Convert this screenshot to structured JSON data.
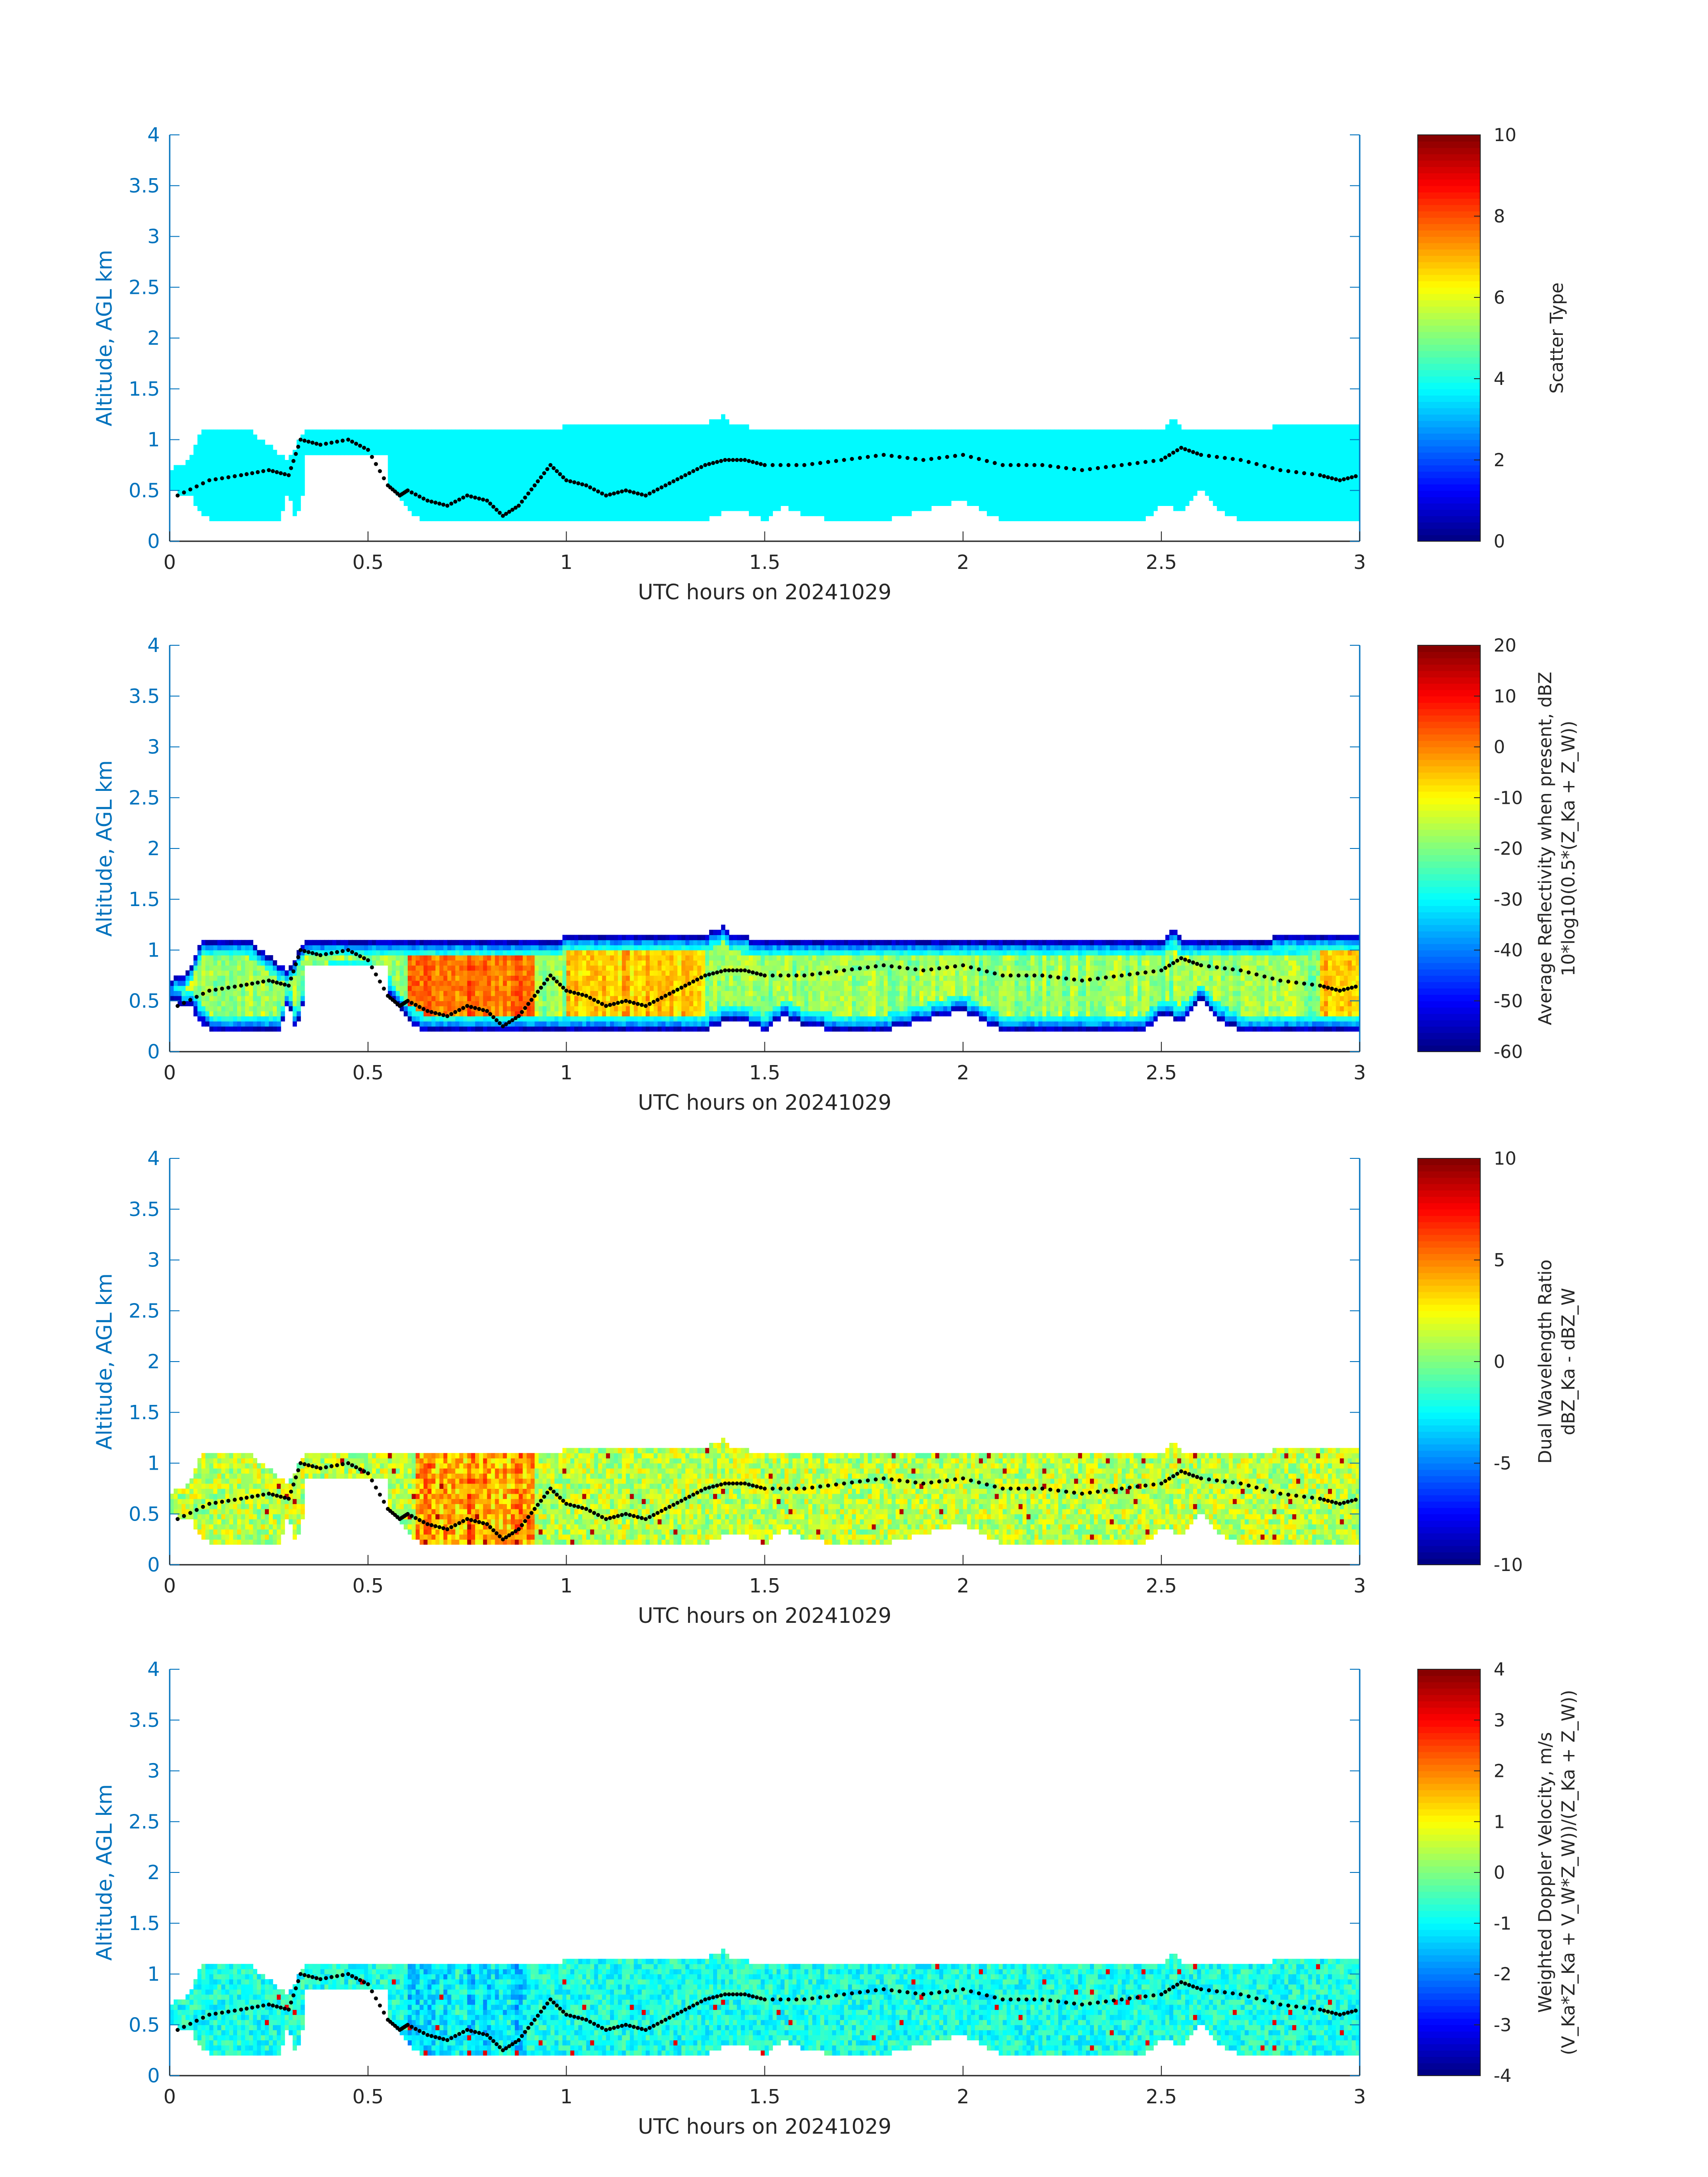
{
  "chart_data": [
    {
      "type": "heatmap",
      "xlabel": "UTC hours on 20241029",
      "ylabel": "Altitude, AGL km",
      "xlim": [
        0,
        3
      ],
      "ylim": [
        0,
        4
      ],
      "xticks": [
        "0",
        "0.5",
        "1",
        "1.5",
        "2",
        "2.5",
        "3"
      ],
      "yticks": [
        "0",
        "0.5",
        "1",
        "1.5",
        "2",
        "2.5",
        "3",
        "3.5",
        "4"
      ],
      "colorbar": {
        "label_lines": [
          "Scatter Type"
        ],
        "clim": [
          0,
          10
        ],
        "ticks": [
          "0",
          "2",
          "4",
          "6",
          "8",
          "10"
        ],
        "colormap": "jet"
      },
      "field": "scatter",
      "typical_value": 3.7
    },
    {
      "type": "heatmap",
      "xlabel": "UTC hours on 20241029",
      "ylabel": "Altitude, AGL km",
      "xlim": [
        0,
        3
      ],
      "ylim": [
        0,
        4
      ],
      "xticks": [
        "0",
        "0.5",
        "1",
        "1.5",
        "2",
        "2.5",
        "3"
      ],
      "yticks": [
        "0",
        "0.5",
        "1",
        "1.5",
        "2",
        "2.5",
        "3",
        "3.5",
        "4"
      ],
      "colorbar": {
        "label_lines": [
          "Average Reflectivity when present, dBZ",
          "10*log10(0.5*(Z_Ka + Z_W))"
        ],
        "clim": [
          -60,
          20
        ],
        "ticks": [
          "-60",
          "-50",
          "-40",
          "-30",
          "-20",
          "-10",
          "0",
          "10",
          "20"
        ],
        "colormap": "jet"
      },
      "field": "reflectivity",
      "cloud_core_range": [
        -20,
        5
      ],
      "cloud_edge_value": -60
    },
    {
      "type": "heatmap",
      "xlabel": "UTC hours on 20241029",
      "ylabel": "Altitude, AGL km",
      "xlim": [
        0,
        3
      ],
      "ylim": [
        0,
        4
      ],
      "xticks": [
        "0",
        "0.5",
        "1",
        "1.5",
        "2",
        "2.5",
        "3"
      ],
      "yticks": [
        "0",
        "0.5",
        "1",
        "1.5",
        "2",
        "2.5",
        "3",
        "3.5",
        "4"
      ],
      "colorbar": {
        "label_lines": [
          "Dual Wavelength Ratio",
          "dBZ_Ka - dBZ_W"
        ],
        "clim": [
          -10,
          10
        ],
        "ticks": [
          "-10",
          "-5",
          "0",
          "5",
          "10"
        ],
        "colormap": "jet"
      },
      "field": "dwr",
      "typical_range": [
        0,
        3
      ]
    },
    {
      "type": "heatmap",
      "xlabel": "UTC hours on 20241029",
      "ylabel": "Altitude, AGL km",
      "xlim": [
        0,
        3
      ],
      "ylim": [
        0,
        4
      ],
      "xticks": [
        "0",
        "0.5",
        "1",
        "1.5",
        "2",
        "2.5",
        "3"
      ],
      "yticks": [
        "0",
        "0.5",
        "1",
        "1.5",
        "2",
        "2.5",
        "3",
        "3.5",
        "4"
      ],
      "colorbar": {
        "label_lines": [
          "Weighted Doppler Velocity, m/s",
          "(V_Ka*Z_Ka + V_W*Z_W))/(Z_Ka + Z_W))"
        ],
        "clim": [
          -4,
          4
        ],
        "ticks": [
          "-4",
          "-3",
          "-2",
          "-1",
          "0",
          "1",
          "2",
          "3",
          "4"
        ],
        "colormap": "jet"
      },
      "field": "velocity",
      "typical_range": [
        -1.5,
        0
      ]
    }
  ],
  "cloud_top": {
    "hours": [
      0,
      0.05,
      0.08,
      0.12,
      0.2,
      0.3,
      0.34,
      0.45,
      0.55,
      0.6,
      0.8,
      0.98,
      1.0,
      1.35,
      1.4,
      1.42,
      1.5,
      2.5,
      2.53,
      2.55,
      3.0
    ],
    "km": [
      0.7,
      0.8,
      1.1,
      1.1,
      1.1,
      0.8,
      1.1,
      1.1,
      1.1,
      1.1,
      1.1,
      1.1,
      1.15,
      1.15,
      1.25,
      1.15,
      1.1,
      1.1,
      1.2,
      1.1,
      1.15
    ]
  },
  "cloud_base": {
    "hours": [
      0,
      0.05,
      0.1,
      0.28,
      0.3,
      0.32,
      0.35,
      0.5,
      0.55,
      0.58,
      0.62,
      0.65,
      0.7,
      0.9,
      1.0,
      1.2,
      1.35,
      1.4,
      1.45,
      1.5,
      1.55,
      1.6,
      1.7,
      1.8,
      1.9,
      2.0,
      2.1,
      2.3,
      2.45,
      2.5,
      2.55,
      2.6,
      2.65,
      2.7,
      2.85,
      3.0
    ],
    "km": [
      0.5,
      0.45,
      0.2,
      0.2,
      0.5,
      0.2,
      0.7,
      0.75,
      0.6,
      0.4,
      0.25,
      0.2,
      0.2,
      0.2,
      0.2,
      0.2,
      0.2,
      0.3,
      0.3,
      0.2,
      0.35,
      0.25,
      0.2,
      0.2,
      0.3,
      0.4,
      0.2,
      0.2,
      0.2,
      0.35,
      0.3,
      0.5,
      0.3,
      0.2,
      0.2,
      0.2
    ]
  },
  "ceilometer_dots": {
    "hours": [
      0.02,
      0.1,
      0.18,
      0.25,
      0.3,
      0.33,
      0.38,
      0.45,
      0.5,
      0.55,
      0.58,
      0.6,
      0.65,
      0.7,
      0.75,
      0.8,
      0.84,
      0.88,
      0.92,
      0.96,
      1.0,
      1.05,
      1.1,
      1.15,
      1.2,
      1.25,
      1.3,
      1.35,
      1.4,
      1.45,
      1.5,
      1.6,
      1.7,
      1.8,
      1.9,
      2.0,
      2.1,
      2.2,
      2.3,
      2.4,
      2.5,
      2.55,
      2.6,
      2.7,
      2.8,
      2.9,
      2.95,
      3.0
    ],
    "km": [
      0.45,
      0.6,
      0.65,
      0.7,
      0.65,
      1.0,
      0.95,
      1.0,
      0.9,
      0.55,
      0.45,
      0.5,
      0.4,
      0.35,
      0.45,
      0.4,
      0.25,
      0.35,
      0.55,
      0.75,
      0.6,
      0.55,
      0.45,
      0.5,
      0.45,
      0.55,
      0.65,
      0.75,
      0.8,
      0.8,
      0.75,
      0.75,
      0.8,
      0.85,
      0.8,
      0.85,
      0.75,
      0.75,
      0.7,
      0.75,
      0.8,
      0.92,
      0.85,
      0.8,
      0.7,
      0.65,
      0.6,
      0.65
    ]
  },
  "dots_color": "#000000",
  "axis_color": "#0072bd",
  "x_axis_color": "#262626",
  "plot_bg": "#ffffff"
}
